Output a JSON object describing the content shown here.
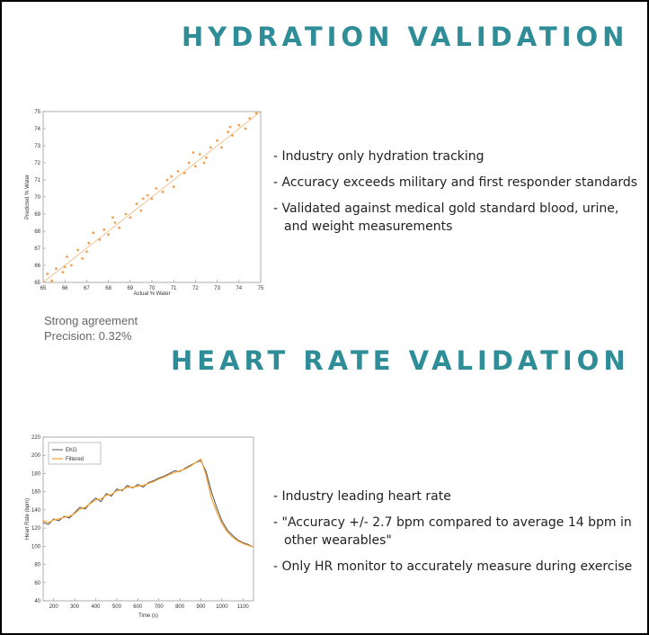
{
  "hydration": {
    "heading": "HYDRATION VALIDATION",
    "bullets": [
      "- Industry only hydration tracking",
      "- Accuracy exceeds military and first responder standards",
      "- Validated against medical gold standard blood, urine, and weight measurements"
    ],
    "notes": [
      "Strong agreement",
      "Precision: 0.32%"
    ]
  },
  "heart": {
    "heading": "HEART RATE VALIDATION",
    "bullets": [
      "- Industry leading heart rate",
      "- \"Accuracy +/- 2.7 bpm compared to average 14 bpm in other wearables\"",
      "- Only HR monitor to accurately measure during exercise"
    ]
  },
  "colors": {
    "heading": "#2f8d98",
    "scatter_point": "#f0a050",
    "ekg": "#555555",
    "filtered": "#f5a030"
  },
  "chart_data": [
    {
      "type": "scatter",
      "xlabel": "Actual % Water",
      "ylabel": "Predicted % Water",
      "xlim": [
        65,
        75
      ],
      "ylim": [
        65,
        75
      ],
      "xticks": [
        "65",
        "66",
        "67",
        "68",
        "69",
        "70",
        "71",
        "72",
        "73",
        "74",
        "75"
      ],
      "yticks": [
        "65",
        "66",
        "67",
        "68",
        "69",
        "70",
        "71",
        "72",
        "73",
        "74",
        "75"
      ],
      "reference_line": [
        [
          65,
          65
        ],
        [
          75,
          75
        ]
      ],
      "points": [
        [
          65.2,
          65.5
        ],
        [
          65.4,
          65.1
        ],
        [
          65.6,
          65.8
        ],
        [
          65.9,
          65.6
        ],
        [
          66.1,
          66.5
        ],
        [
          66.3,
          66.0
        ],
        [
          66.6,
          66.9
        ],
        [
          66.8,
          66.4
        ],
        [
          67.1,
          67.3
        ],
        [
          67.3,
          67.9
        ],
        [
          67.6,
          67.5
        ],
        [
          67.8,
          68.1
        ],
        [
          68.0,
          67.8
        ],
        [
          68.3,
          68.5
        ],
        [
          68.5,
          68.2
        ],
        [
          68.8,
          69.0
        ],
        [
          69.0,
          68.8
        ],
        [
          69.3,
          69.6
        ],
        [
          69.5,
          69.2
        ],
        [
          69.8,
          70.1
        ],
        [
          70.0,
          69.9
        ],
        [
          70.2,
          70.5
        ],
        [
          70.5,
          70.3
        ],
        [
          70.7,
          71.0
        ],
        [
          71.0,
          70.6
        ],
        [
          71.2,
          71.5
        ],
        [
          71.5,
          71.4
        ],
        [
          71.7,
          72.0
        ],
        [
          72.0,
          71.8
        ],
        [
          72.2,
          72.5
        ],
        [
          72.5,
          72.3
        ],
        [
          72.7,
          72.9
        ],
        [
          73.0,
          73.3
        ],
        [
          73.2,
          72.9
        ],
        [
          73.5,
          73.8
        ],
        [
          73.7,
          73.6
        ],
        [
          74.0,
          74.2
        ],
        [
          74.3,
          74.0
        ],
        [
          74.5,
          74.6
        ],
        [
          74.8,
          74.9
        ],
        [
          66.0,
          65.9
        ],
        [
          67.0,
          66.8
        ],
        [
          68.2,
          68.8
        ],
        [
          69.6,
          69.9
        ],
        [
          70.9,
          71.2
        ],
        [
          72.4,
          72.0
        ],
        [
          73.6,
          74.1
        ],
        [
          71.9,
          72.6
        ]
      ]
    },
    {
      "type": "line",
      "xlabel": "Time (s)",
      "ylabel": "Heart Rate (bpm)",
      "xlim": [
        150,
        1150
      ],
      "ylim": [
        40,
        220
      ],
      "xticks": [
        "200",
        "300",
        "400",
        "500",
        "600",
        "700",
        "800",
        "900",
        "1000",
        "1100"
      ],
      "yticks": [
        "40",
        "60",
        "80",
        "100",
        "120",
        "140",
        "160",
        "180",
        "200",
        "220"
      ],
      "legend_position": "top-left",
      "series": [
        {
          "name": "EKG",
          "x": [
            150,
            175,
            200,
            225,
            250,
            275,
            300,
            325,
            350,
            375,
            400,
            425,
            450,
            475,
            500,
            525,
            550,
            575,
            600,
            625,
            650,
            675,
            700,
            725,
            750,
            775,
            800,
            825,
            850,
            875,
            900,
            925,
            950,
            975,
            1000,
            1025,
            1050,
            1075,
            1100,
            1125,
            1150
          ],
          "y": [
            126,
            124,
            130,
            128,
            133,
            131,
            137,
            143,
            141,
            148,
            153,
            149,
            158,
            155,
            163,
            161,
            167,
            164,
            168,
            165,
            170,
            172,
            175,
            177,
            180,
            183,
            182,
            186,
            189,
            192,
            194,
            182,
            160,
            143,
            128,
            118,
            112,
            107,
            104,
            102,
            99
          ]
        },
        {
          "name": "Filtered",
          "x": [
            150,
            175,
            200,
            225,
            250,
            275,
            300,
            325,
            350,
            375,
            400,
            425,
            450,
            475,
            500,
            525,
            550,
            575,
            600,
            625,
            650,
            675,
            700,
            725,
            750,
            775,
            800,
            825,
            850,
            875,
            900,
            925,
            950,
            975,
            1000,
            1025,
            1050,
            1075,
            1100,
            1125,
            1150
          ],
          "y": [
            128,
            126,
            129,
            130,
            132,
            133,
            136,
            141,
            143,
            147,
            151,
            152,
            156,
            157,
            161,
            162,
            165,
            165,
            166,
            167,
            169,
            171,
            174,
            176,
            179,
            181,
            183,
            185,
            188,
            192,
            196,
            178,
            153,
            138,
            125,
            116,
            110,
            106,
            103,
            101,
            99
          ]
        }
      ]
    }
  ]
}
